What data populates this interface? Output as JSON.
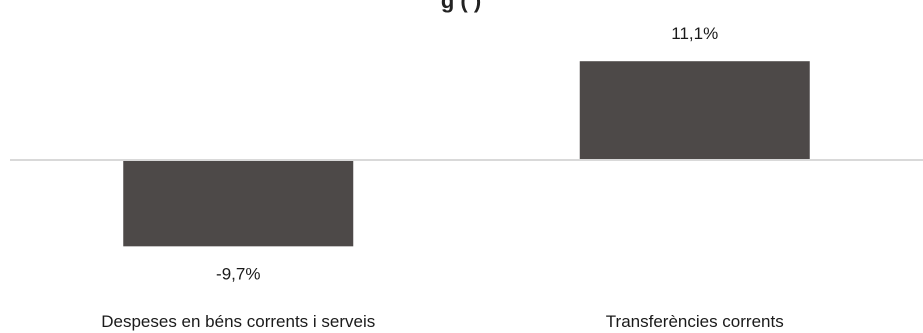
{
  "colors": {
    "bar": "#4d4948",
    "axis": "#d9d9d9",
    "text": "#1a1a1a",
    "background": "#ffffff"
  },
  "chart_data": {
    "type": "bar",
    "title": "",
    "title_partial_visible": "g         ( )",
    "categories": [
      "Despeses en béns corrents i serveis",
      "Transferències corrents"
    ],
    "values": [
      -9.7,
      11.1
    ],
    "data_labels": [
      "-9,7%",
      "11,1%"
    ],
    "ylim": [
      -11.5,
      17
    ],
    "xlabel": "",
    "ylabel": "",
    "grid": false,
    "legend": "none"
  }
}
